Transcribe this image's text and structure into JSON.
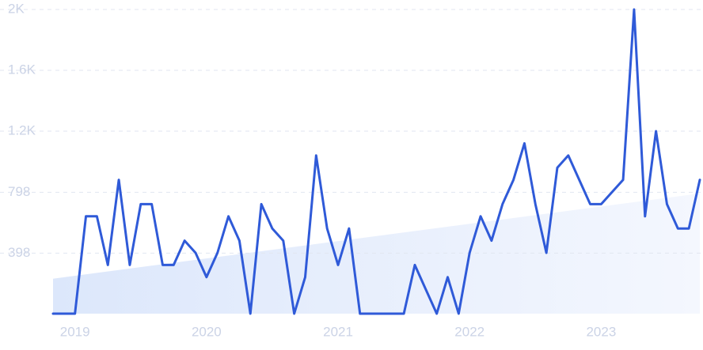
{
  "chart_data": {
    "type": "line",
    "categories": [
      null,
      null,
      "2019",
      null,
      null,
      null,
      null,
      null,
      null,
      null,
      null,
      null,
      null,
      null,
      "2020",
      null,
      null,
      null,
      null,
      null,
      null,
      null,
      null,
      null,
      null,
      null,
      "2021",
      null,
      null,
      null,
      null,
      null,
      null,
      null,
      null,
      null,
      null,
      null,
      "2022",
      null,
      null,
      null,
      null,
      null,
      null,
      null,
      null,
      null,
      null,
      null,
      "2023",
      null,
      null,
      null,
      null,
      null,
      null,
      null,
      null,
      null
    ],
    "values": [
      0,
      0,
      0,
      640,
      640,
      320,
      880,
      320,
      720,
      720,
      320,
      320,
      480,
      400,
      240,
      400,
      640,
      480,
      0,
      720,
      560,
      480,
      0,
      240,
      1040,
      560,
      320,
      560,
      0,
      0,
      0,
      0,
      0,
      320,
      160,
      0,
      240,
      0,
      400,
      640,
      480,
      720,
      880,
      1120,
      720,
      400,
      960,
      1040,
      880,
      720,
      720,
      800,
      880,
      2000,
      640,
      1200,
      720,
      560,
      560,
      880
    ],
    "trend_values": [
      230,
      790
    ],
    "color": "#2f5ad8",
    "ylim": [
      0,
      2000
    ],
    "yticks": [
      398,
      798,
      {
        "value": 1200,
        "label": "1.2K"
      },
      {
        "value": 1600,
        "label": "1.6K"
      },
      {
        "value": 2000,
        "label": "2K"
      }
    ],
    "grid": true
  }
}
